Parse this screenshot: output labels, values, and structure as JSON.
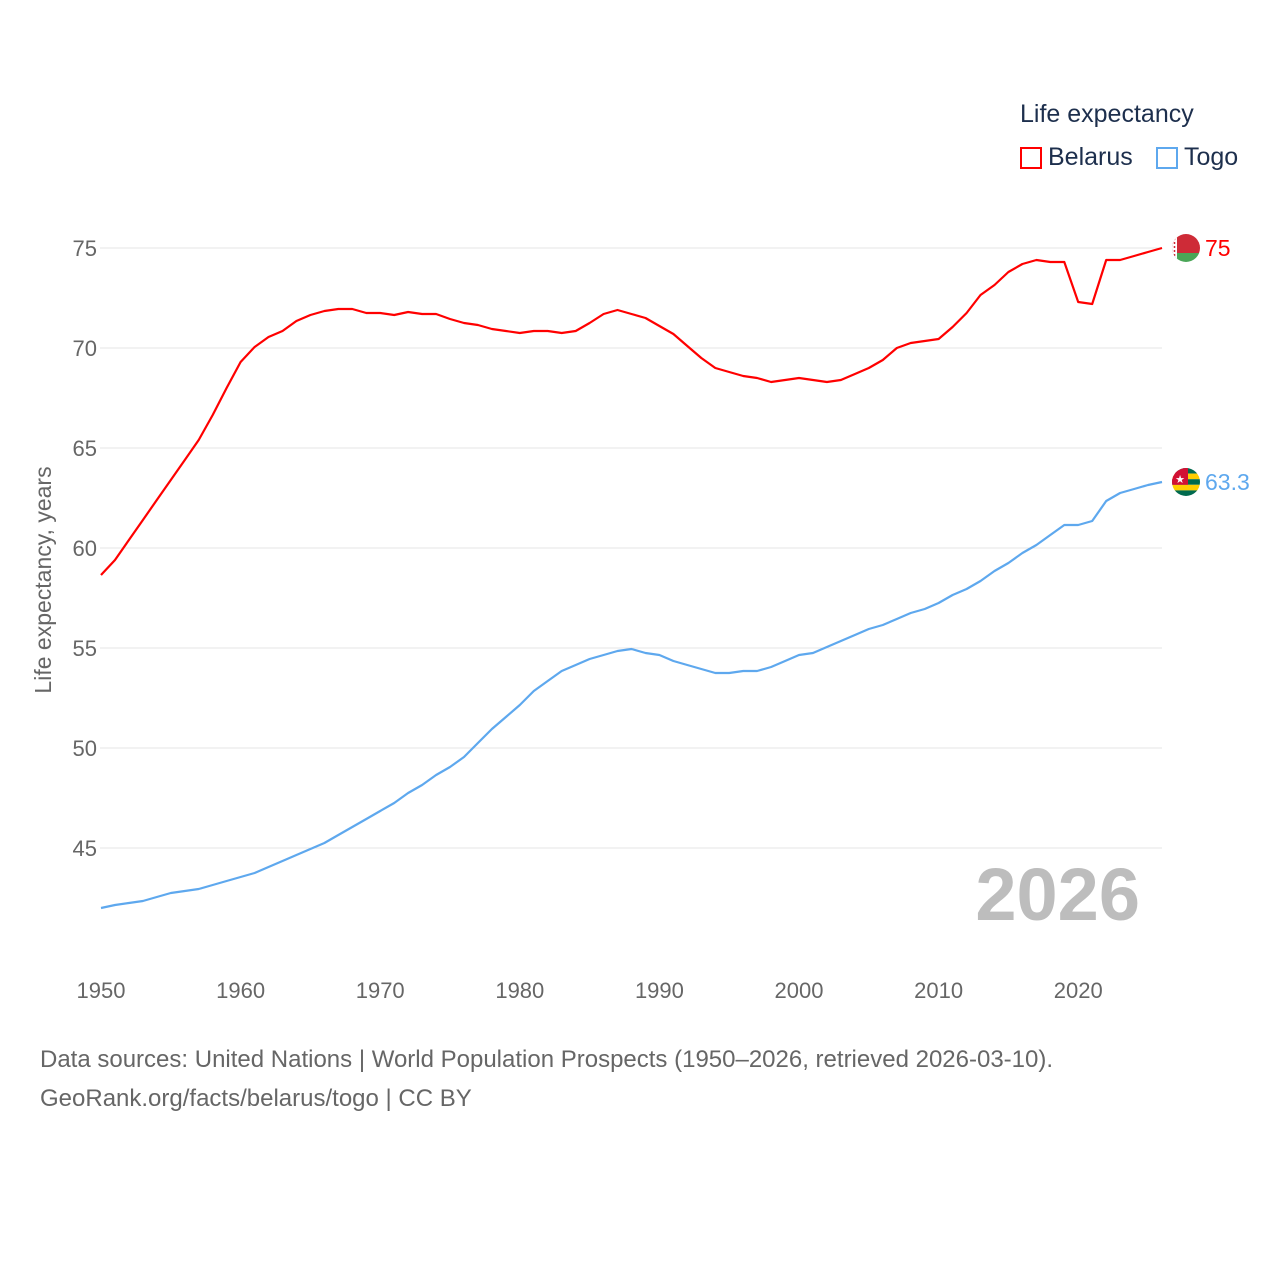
{
  "legend": {
    "title": "Life expectancy",
    "items": [
      {
        "label": "Belarus",
        "color": "#ff0000"
      },
      {
        "label": "Togo",
        "color": "#5ea8ee"
      }
    ]
  },
  "footer": {
    "line1": "Data sources: United Nations | World Population Prospects (1950–2026, retrieved 2026-03-10).",
    "line2": "GeoRank.org/facts/belarus/togo | CC BY"
  },
  "chart_data": {
    "type": "line",
    "title": "Life expectancy",
    "xlabel": "",
    "ylabel": "Life expectancy, years",
    "year_label": "2026",
    "xlim": [
      1950,
      2026
    ],
    "ylim": [
      41,
      77
    ],
    "xticks": [
      1950,
      1960,
      1970,
      1980,
      1990,
      2000,
      2010,
      2020
    ],
    "yticks": [
      45,
      50,
      55,
      60,
      65,
      70,
      75
    ],
    "grid": true,
    "legend_position": "top-right",
    "x_start": 1950,
    "series": [
      {
        "name": "Belarus",
        "color": "#ff0000",
        "end_label": "75",
        "values": [
          58.65,
          59.4,
          60.4,
          61.4,
          62.4,
          63.4,
          64.4,
          65.4,
          66.65,
          68.0,
          69.3,
          70.05,
          70.55,
          70.85,
          71.35,
          71.65,
          71.85,
          71.95,
          71.95,
          71.75,
          71.75,
          71.65,
          71.8,
          71.7,
          71.7,
          71.45,
          71.25,
          71.15,
          70.95,
          70.85,
          70.75,
          70.85,
          70.85,
          70.75,
          70.85,
          71.25,
          71.7,
          71.9,
          71.7,
          71.5,
          71.1,
          70.7,
          70.1,
          69.5,
          69.0,
          68.8,
          68.6,
          68.5,
          68.3,
          68.4,
          68.5,
          68.4,
          68.3,
          68.4,
          68.7,
          69.0,
          69.4,
          70.0,
          70.25,
          70.35,
          70.45,
          71.05,
          71.75,
          72.65,
          73.15,
          73.8,
          74.2,
          74.4,
          74.3,
          74.3,
          72.3,
          72.2,
          74.4,
          74.4,
          74.6,
          74.8,
          75.0
        ]
      },
      {
        "name": "Togo",
        "color": "#5ea8ee",
        "end_label": "63.3",
        "values": [
          42.0,
          42.15,
          42.25,
          42.35,
          42.55,
          42.75,
          42.85,
          42.95,
          43.15,
          43.35,
          43.55,
          43.75,
          44.05,
          44.35,
          44.65,
          44.95,
          45.25,
          45.65,
          46.05,
          46.45,
          46.85,
          47.25,
          47.75,
          48.15,
          48.65,
          49.05,
          49.55,
          50.25,
          50.95,
          51.55,
          52.15,
          52.85,
          53.35,
          53.85,
          54.15,
          54.45,
          54.65,
          54.85,
          54.95,
          54.75,
          54.65,
          54.35,
          54.15,
          53.95,
          53.75,
          53.75,
          53.85,
          53.85,
          54.05,
          54.35,
          54.65,
          54.75,
          55.05,
          55.35,
          55.65,
          55.95,
          56.15,
          56.45,
          56.75,
          56.95,
          57.25,
          57.65,
          57.95,
          58.35,
          58.85,
          59.25,
          59.75,
          60.15,
          60.65,
          61.15,
          61.15,
          61.35,
          62.35,
          62.75,
          62.95,
          63.15,
          63.3
        ]
      }
    ]
  }
}
